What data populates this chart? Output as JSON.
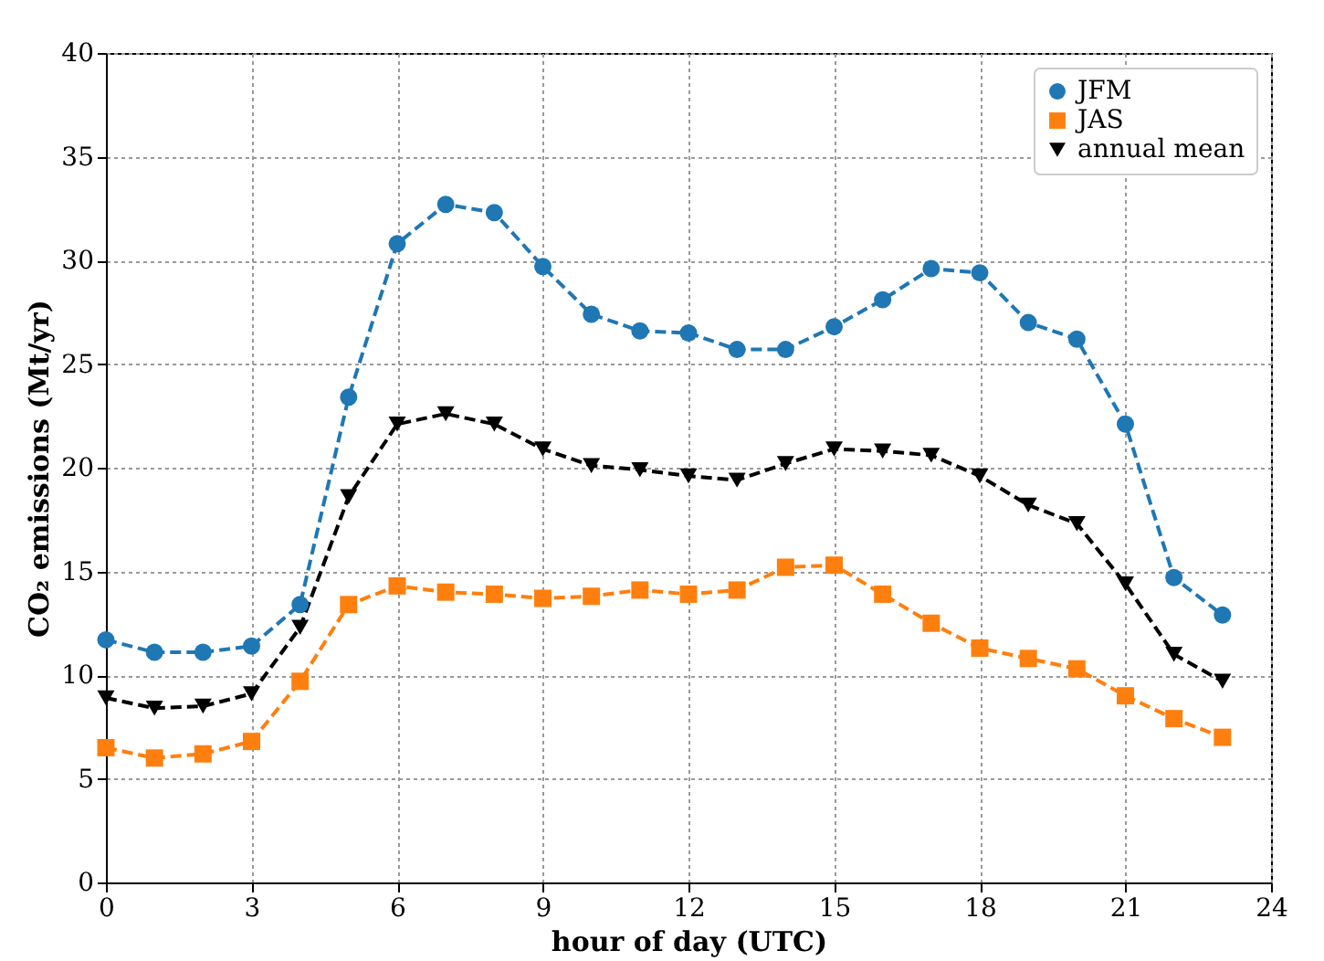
{
  "chart_data": {
    "type": "line",
    "xlabel": "hour of day (UTC)",
    "ylabel": "CO₂ emissions (Mt/yr)",
    "x": [
      0,
      1,
      2,
      3,
      4,
      5,
      6,
      7,
      8,
      9,
      10,
      11,
      12,
      13,
      14,
      15,
      16,
      17,
      18,
      19,
      20,
      21,
      22,
      23
    ],
    "series": [
      {
        "name": "JFM",
        "color": "#1f77b4",
        "marker": "circle",
        "values": [
          11.7,
          11.1,
          11.1,
          11.4,
          13.4,
          23.4,
          30.8,
          32.7,
          32.3,
          29.7,
          27.4,
          26.6,
          26.5,
          25.7,
          25.7,
          26.8,
          28.1,
          29.6,
          29.4,
          27.0,
          26.2,
          22.1,
          14.7,
          12.9
        ]
      },
      {
        "name": "JAS",
        "color": "#ff7f0e",
        "marker": "square",
        "values": [
          6.5,
          6.0,
          6.2,
          6.8,
          9.7,
          13.4,
          14.3,
          14.0,
          13.9,
          13.7,
          13.8,
          14.1,
          13.9,
          14.1,
          15.2,
          15.3,
          13.9,
          12.5,
          11.3,
          10.8,
          10.3,
          9.0,
          7.9,
          7.0
        ]
      },
      {
        "name": "annual mean",
        "color": "#000000",
        "marker": "triangle",
        "values": [
          8.9,
          8.4,
          8.5,
          9.1,
          12.3,
          18.6,
          22.1,
          22.6,
          22.1,
          20.9,
          20.1,
          19.9,
          19.6,
          19.4,
          20.2,
          20.9,
          20.8,
          20.6,
          19.6,
          18.2,
          17.3,
          14.4,
          11.0,
          9.7
        ]
      }
    ],
    "xlim": [
      0,
      24
    ],
    "xticks": [
      0,
      3,
      6,
      9,
      12,
      15,
      18,
      21,
      24
    ],
    "ylim": [
      0,
      40
    ],
    "yticks": [
      0,
      5,
      10,
      15,
      20,
      25,
      30,
      35,
      40
    ],
    "grid": true,
    "legend": "top right",
    "line_style": "dashed"
  }
}
